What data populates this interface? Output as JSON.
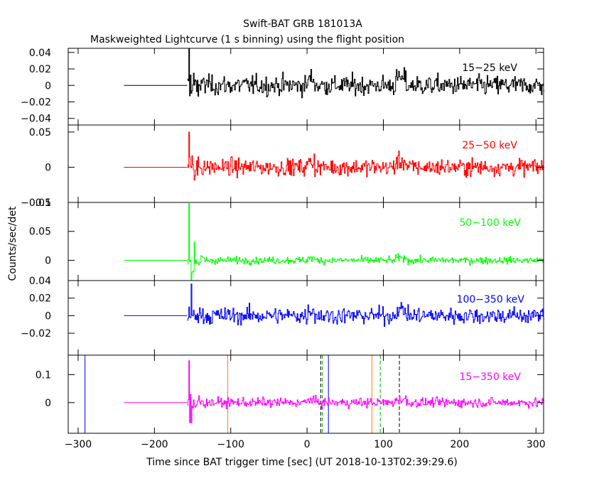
{
  "title": "Swift-BAT GRB 181013A",
  "subtitle": "Maskweighted Lightcurve (1 s binning) using the flight position",
  "xlabel": "Time since BAT trigger time [sec] (UT 2018-10-13T02:39:29.6)",
  "ylabel": "Counts/sec/det",
  "x_ticks": [
    "−300",
    "−200",
    "−100",
    "0",
    "100",
    "200",
    "300"
  ],
  "chart_data": [
    {
      "type": "line",
      "band": "15-25 keV",
      "label": "15−25 keV",
      "color": "#000000",
      "ylim": [
        -0.048,
        0.045
      ],
      "y_ticks": [
        0.04,
        0.02,
        0,
        -0.02,
        -0.04
      ],
      "y_tick_labels": [
        "0.04",
        "0.02",
        "0",
        "−0.02",
        "−0.04"
      ],
      "flat_segment": {
        "x": [
          -240,
          -157
        ],
        "y": 0
      },
      "noise_sigma": 0.01,
      "burst_peak": 0.045,
      "burst_time": -155
    },
    {
      "type": "line",
      "band": "25-50 keV",
      "label": "25−50 keV",
      "color": "#ff0000",
      "ylim": [
        -0.05,
        0.06
      ],
      "y_ticks": [
        0.05,
        0,
        -0.05
      ],
      "y_tick_labels": [
        "0.05",
        "0",
        "−0.05"
      ],
      "flat_segment": {
        "x": [
          -240,
          -157
        ],
        "y": 0
      },
      "noise_sigma": 0.01,
      "burst_peak": 0.05,
      "burst_time": -155
    },
    {
      "type": "line",
      "band": "50-100 keV",
      "label": "50−100 keV",
      "color": "#00ff00",
      "ylim": [
        -0.035,
        0.1
      ],
      "y_ticks": [
        0.1,
        0.05,
        0
      ],
      "y_tick_labels": [
        "0.1",
        "0.05",
        "0"
      ],
      "flat_segment": {
        "x": [
          -240,
          -157
        ],
        "y": 0
      },
      "noise_sigma": 0.005,
      "burst_peak": 0.1,
      "burst_time": -155
    },
    {
      "type": "line",
      "band": "100-350 keV",
      "label": "100−350 keV",
      "color": "#0000ff",
      "ylim": [
        -0.045,
        0.04
      ],
      "y_ticks": [
        0.04,
        0.02,
        0,
        -0.02
      ],
      "y_tick_labels": [
        "0.04",
        "0.02",
        "0",
        "−0.02"
      ],
      "flat_segment": {
        "x": [
          -240,
          -157
        ],
        "y": 0
      },
      "noise_sigma": 0.008,
      "burst_peak": 0.036,
      "burst_time": -152
    },
    {
      "type": "line",
      "band": "15-350 keV",
      "label": "15−350 keV",
      "color": "#ff00ff",
      "ylim": [
        -0.11,
        0.17
      ],
      "y_ticks": [
        0.1,
        0
      ],
      "y_tick_labels": [
        "0.1",
        "0"
      ],
      "flat_segment": {
        "x": [
          -240,
          -157
        ],
        "y": 0
      },
      "noise_sigma": 0.014,
      "burst_peak": 0.15,
      "burst_time": -155,
      "markers": [
        {
          "x": -291,
          "color": "#0000ff",
          "style": "solid"
        },
        {
          "x": -104,
          "color": "#ff8000",
          "style": "solid"
        },
        {
          "x": 18,
          "color": "#000000",
          "style": "dashed"
        },
        {
          "x": 20,
          "color": "#00aa00",
          "style": "dashed"
        },
        {
          "x": 28,
          "color": "#0000ff",
          "style": "solid"
        },
        {
          "x": 85,
          "color": "#ff8000",
          "style": "solid"
        },
        {
          "x": 96,
          "color": "#00aa00",
          "style": "dashed"
        },
        {
          "x": 121,
          "color": "#000000",
          "style": "dashed"
        }
      ]
    }
  ],
  "xlim": [
    -313,
    310
  ],
  "x_tick_values": [
    -300,
    -200,
    -100,
    0,
    100,
    200,
    300
  ],
  "data_x_range": [
    -157,
    310
  ]
}
